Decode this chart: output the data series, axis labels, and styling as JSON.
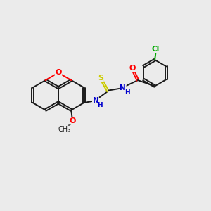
{
  "background_color": "#ebebeb",
  "bond_color": "#1a1a1a",
  "oxygen_color": "#ff0000",
  "nitrogen_color": "#0000cd",
  "sulfur_color": "#cccc00",
  "chlorine_color": "#00aa00",
  "line_width": 1.4,
  "figsize": [
    3.0,
    3.0
  ],
  "dpi": 100,
  "xlim": [
    0,
    10
  ],
  "ylim": [
    0,
    10
  ]
}
